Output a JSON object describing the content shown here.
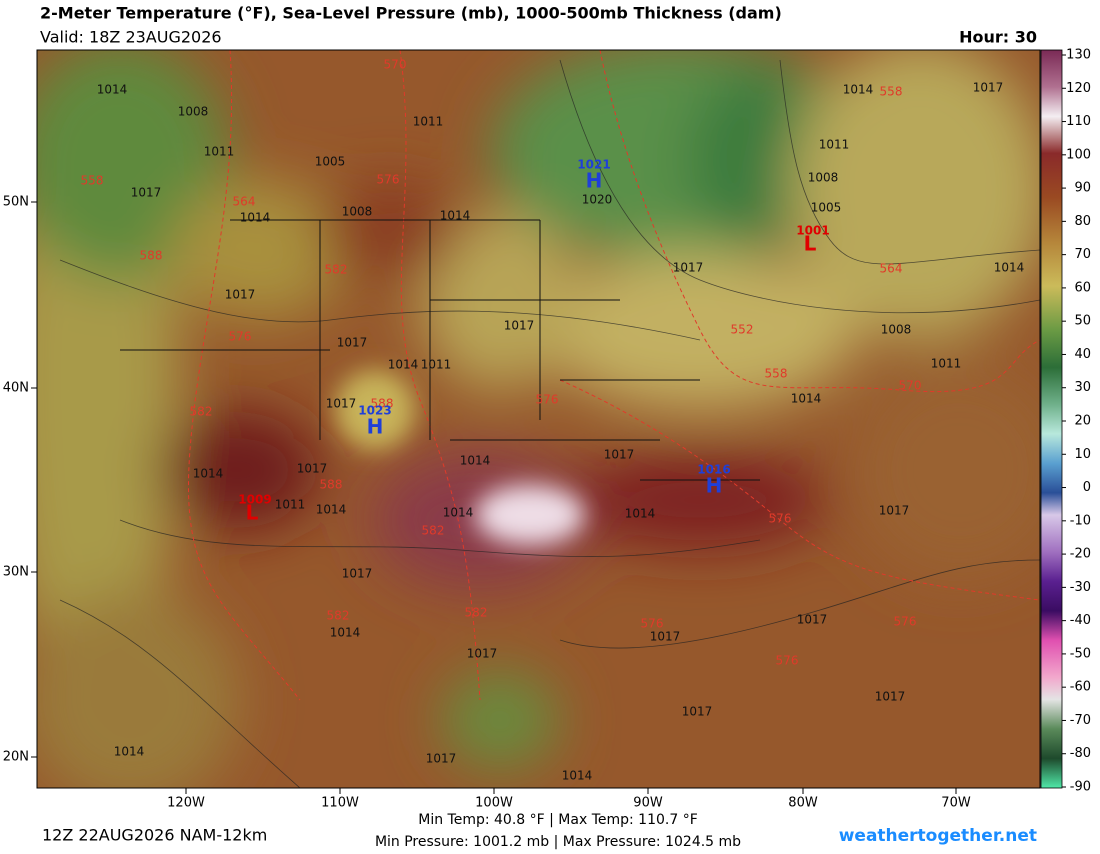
{
  "header": {
    "title": "2-Meter Temperature (°F), Sea-Level Pressure (mb), 1000-500mb Thickness (dam)",
    "valid": "Valid: 18Z 23AUG2026",
    "hour": "Hour: 30"
  },
  "colorbar": {
    "ticks": [
      130,
      120,
      110,
      100,
      90,
      80,
      70,
      60,
      50,
      40,
      30,
      20,
      10,
      0,
      -10,
      -20,
      -30,
      -40,
      -50,
      -60,
      -70,
      -80,
      -90
    ]
  },
  "lat_labels": [
    "50N",
    "40N",
    "30N",
    "20N"
  ],
  "lon_labels": [
    "120W",
    "110W",
    "100W",
    "90W",
    "80W",
    "70W"
  ],
  "isobar_labels": [
    "1014",
    "1008",
    "1011",
    "1017",
    "1014",
    "1005",
    "1008",
    "1011",
    "1014",
    "1017",
    "1017",
    "1014",
    "1011",
    "1017",
    "1017",
    "1011",
    "1008",
    "1005",
    "1017",
    "1014",
    "1014",
    "1008",
    "1011",
    "1014",
    "1017",
    "1014",
    "1017",
    "1017",
    "1014",
    "1011",
    "1014",
    "1014",
    "1014",
    "1017",
    "1017",
    "1014",
    "1017",
    "1017",
    "1017",
    "1017",
    "1017",
    "1014",
    "1017",
    "1014",
    "1020"
  ],
  "thickness_labels": [
    "570",
    "558",
    "564",
    "576",
    "588",
    "582",
    "576",
    "552",
    "558",
    "570",
    "564",
    "576",
    "582",
    "588",
    "588",
    "582",
    "576",
    "582",
    "582",
    "576",
    "576",
    "576",
    "558"
  ],
  "highs": [
    {
      "value": "1021",
      "label": "H"
    },
    {
      "value": "1023",
      "label": "H"
    },
    {
      "value": "1016",
      "label": "H"
    }
  ],
  "lows": [
    {
      "value": "1001",
      "label": "L"
    },
    {
      "value": "1009",
      "label": "L"
    }
  ],
  "footer": {
    "temp_line": "Min Temp:  40.8 °F | Max Temp: 110.7 °F",
    "pressure_line": "Min Pressure: 1001.2 mb | Max Pressure: 1024.5 mb",
    "run": "12Z 22AUG2026 NAM-12km",
    "site": "weathertogether.net"
  }
}
